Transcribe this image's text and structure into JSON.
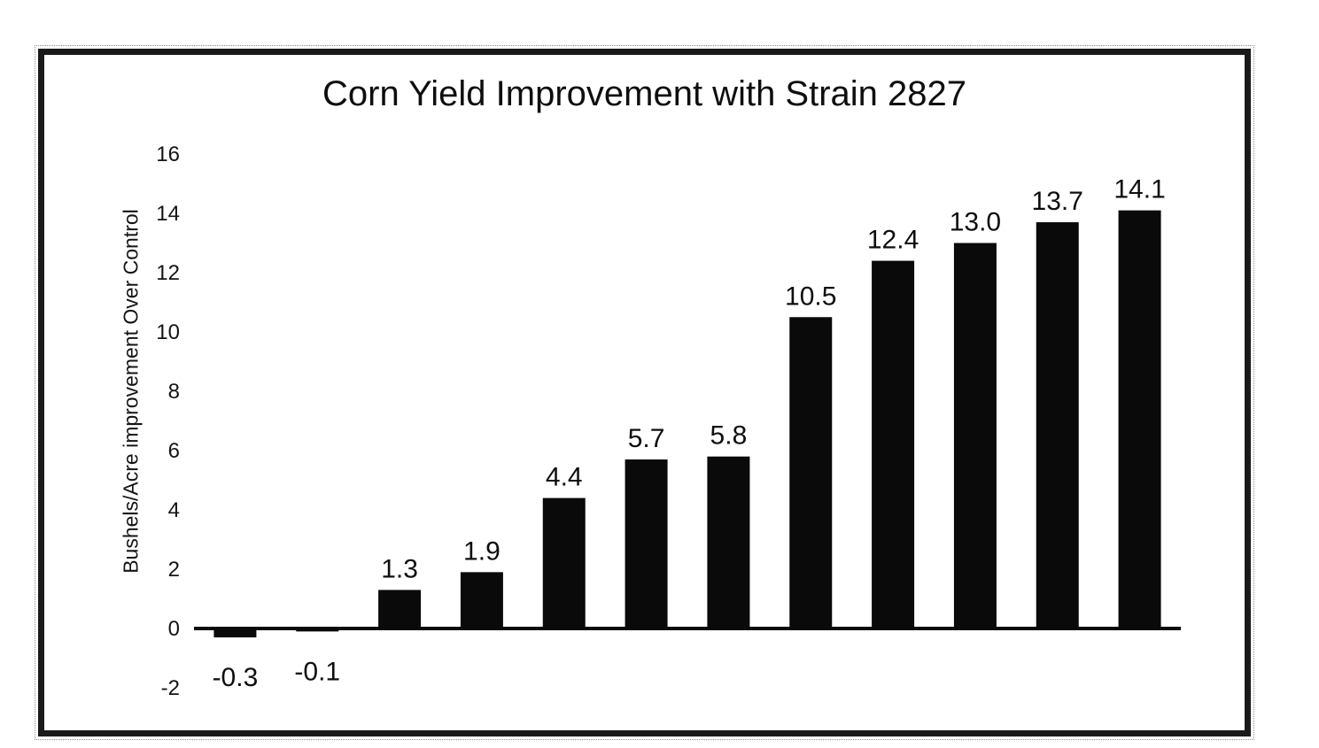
{
  "chart_data": {
    "type": "bar",
    "title": "Corn Yield Improvement with Strain 2827",
    "ylabel": "Bushels/Acre improvement Over Control",
    "xlabel": "",
    "values": [
      -0.3,
      -0.1,
      1.3,
      1.9,
      4.4,
      5.7,
      5.8,
      10.5,
      12.4,
      13.0,
      13.7,
      14.1
    ],
    "value_labels": [
      "-0.3",
      "-0.1",
      "1.3",
      "1.9",
      "4.4",
      "5.7",
      "5.8",
      "10.5",
      "12.4",
      "13.0",
      "13.7",
      "14.1"
    ],
    "ylim": [
      -2,
      16
    ],
    "yticks": [
      -2,
      0,
      2,
      4,
      6,
      8,
      10,
      12,
      14,
      16
    ],
    "ytick_labels": [
      "-2",
      "0",
      "2",
      "4",
      "6",
      "8",
      "10",
      "12",
      "14",
      "16"
    ],
    "bar_color": "#0a0a0a",
    "axis_color": "#0a0a0a",
    "grid": false,
    "legend": false
  }
}
